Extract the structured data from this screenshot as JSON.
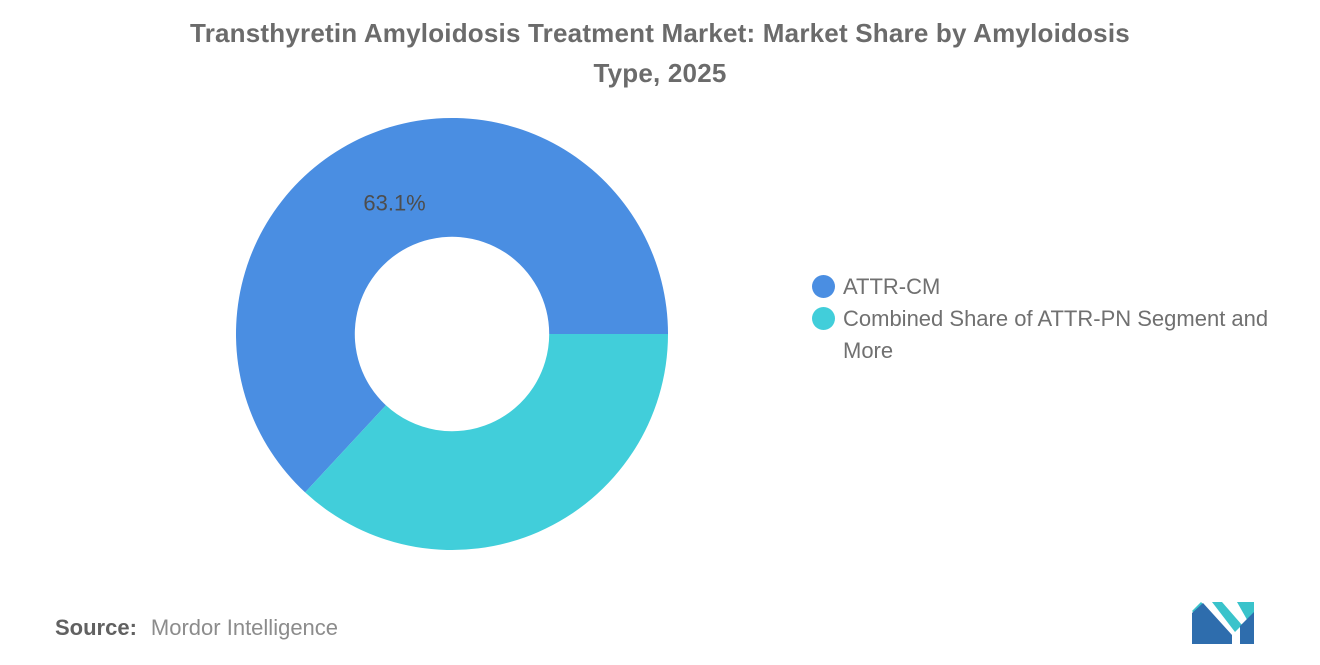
{
  "title": {
    "full": "Transthyretin Amyloidosis Treatment Market: Market Share by Amyloidosis Type, 2025",
    "line1": "Transthyretin Amyloidosis Treatment Market: Market Share by Amyloidosis",
    "line2": "Type, 2025"
  },
  "source": {
    "label": "Source:",
    "value": "Mordor Intelligence"
  },
  "logo": {
    "name": "mordor-intelligence-logo",
    "blue": "#2e6dad",
    "teal": "#3ac3cb"
  },
  "colors": {
    "background": "#ffffff",
    "title_text": "#6b6b6b",
    "legend_text": "#707070",
    "data_label_text": "#4d4d4d"
  },
  "chart_data": {
    "type": "pie",
    "subtype": "donut",
    "title": "Transthyretin Amyloidosis Treatment Market: Market Share by Amyloidosis Type, 2025",
    "unit": "%",
    "slices": [
      {
        "label": "ATTR-CM",
        "value": 63.1,
        "color": "#4a8ee2",
        "data_label": "63.1%"
      },
      {
        "label": "Combined Share of ATTR-PN Segment and More",
        "value": 36.9,
        "color": "#41ceda",
        "data_label": ""
      }
    ],
    "start_angle_deg": 0,
    "direction": "counterclockwise",
    "inner_radius_ratio": 0.45,
    "legend_position": "right",
    "grid": false
  }
}
